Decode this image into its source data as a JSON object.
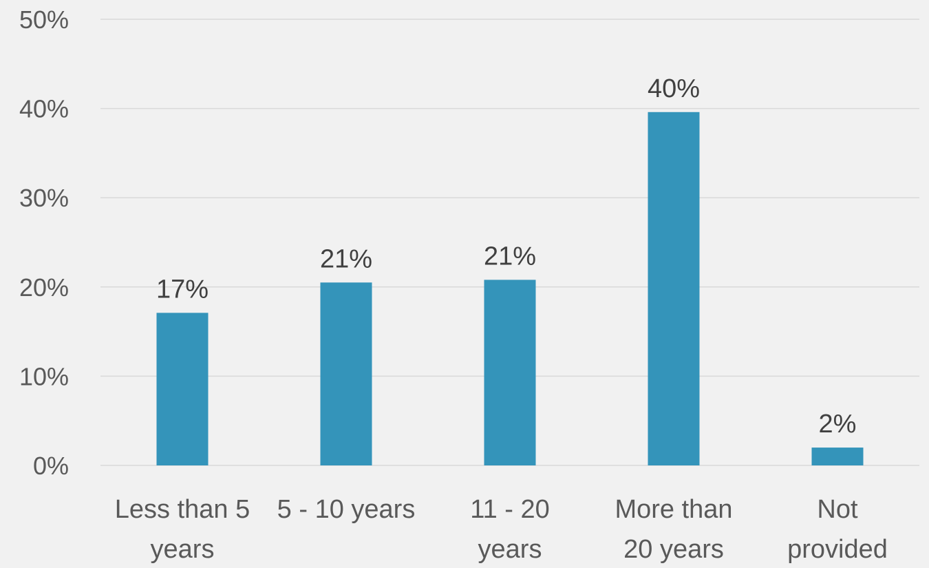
{
  "chart_data": {
    "type": "bar",
    "title": "",
    "xlabel": "",
    "ylabel": "",
    "categories": [
      [
        "Less than 5",
        "years"
      ],
      [
        "5 - 10 years"
      ],
      [
        "11 - 20",
        "years"
      ],
      [
        "More than",
        "20 years"
      ],
      [
        "Not",
        "provided"
      ]
    ],
    "values": [
      17,
      21,
      21,
      40,
      2
    ],
    "plotted_values": [
      17.1,
      20.5,
      20.8,
      39.6,
      2.0
    ],
    "data_labels": [
      "17%",
      "21%",
      "21%",
      "40%",
      "2%"
    ],
    "ylim": [
      0,
      50
    ],
    "yticks": [
      0,
      10,
      20,
      30,
      40,
      50
    ],
    "ytick_labels": [
      "0%",
      "10%",
      "20%",
      "30%",
      "40%",
      "50%"
    ],
    "grid": true,
    "legend": "none",
    "colors": {
      "bar": "#3494ba",
      "background": "#f1f1f1",
      "gridline": "#d9d9d9",
      "axis_text": "#595959",
      "data_label_text": "#404040"
    }
  }
}
